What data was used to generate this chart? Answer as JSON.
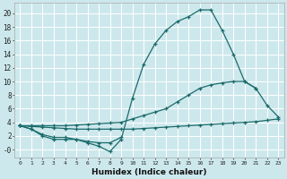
{
  "xlabel": "Humidex (Indice chaleur)",
  "background_color": "#cde8ec",
  "grid_color": "#ffffff",
  "line_color": "#1a6b6b",
  "xlim": [
    -0.5,
    23.5
  ],
  "ylim": [
    -1.2,
    21.5
  ],
  "xticks": [
    0,
    1,
    2,
    3,
    4,
    5,
    6,
    7,
    8,
    9,
    10,
    11,
    12,
    13,
    14,
    15,
    16,
    17,
    18,
    19,
    20,
    21,
    22,
    23
  ],
  "yticks": [
    0,
    2,
    4,
    6,
    8,
    10,
    12,
    14,
    16,
    18,
    20
  ],
  "ytick_labels": [
    "-0",
    "2",
    "4",
    "6",
    "8",
    "10",
    "12",
    "14",
    "16",
    "18",
    "20"
  ],
  "line1_x": [
    0,
    1,
    2,
    3,
    4,
    5,
    6,
    7,
    8,
    9,
    10,
    11,
    12,
    13,
    14,
    15,
    16,
    17,
    18,
    19,
    20,
    21
  ],
  "line1_y": [
    3.5,
    3.0,
    2.0,
    1.5,
    1.5,
    1.5,
    1.0,
    0.5,
    -0.3,
    1.5,
    7.5,
    12.5,
    15.5,
    17.5,
    18.8,
    19.5,
    20.5,
    20.5,
    17.5,
    14.0,
    10.0,
    9.0
  ],
  "line2_x": [
    0,
    1,
    2,
    3,
    4,
    5,
    6,
    7,
    8,
    9
  ],
  "line2_y": [
    3.5,
    3.0,
    2.2,
    1.8,
    1.8,
    1.5,
    1.2,
    1.0,
    1.0,
    1.8
  ],
  "line3_x": [
    0,
    1,
    2,
    3,
    4,
    5,
    6,
    7,
    8,
    9,
    10,
    11,
    12,
    13,
    14,
    15,
    16,
    17,
    18,
    19,
    20,
    21,
    22,
    23
  ],
  "line3_y": [
    3.5,
    3.5,
    3.5,
    3.5,
    3.5,
    3.6,
    3.7,
    3.8,
    3.9,
    4.0,
    4.5,
    5.0,
    5.5,
    6.0,
    7.0,
    8.0,
    9.0,
    9.5,
    9.8,
    10.0,
    10.0,
    9.0,
    6.5,
    4.8
  ],
  "line4_x": [
    0,
    1,
    2,
    3,
    4,
    5,
    6,
    7,
    8,
    9,
    10,
    11,
    12,
    13,
    14,
    15,
    16,
    17,
    18,
    19,
    20,
    21,
    22,
    23
  ],
  "line4_y": [
    3.5,
    3.4,
    3.3,
    3.2,
    3.1,
    3.0,
    3.0,
    3.0,
    3.0,
    3.0,
    3.0,
    3.1,
    3.2,
    3.3,
    3.4,
    3.5,
    3.6,
    3.7,
    3.8,
    3.9,
    4.0,
    4.1,
    4.3,
    4.5
  ]
}
